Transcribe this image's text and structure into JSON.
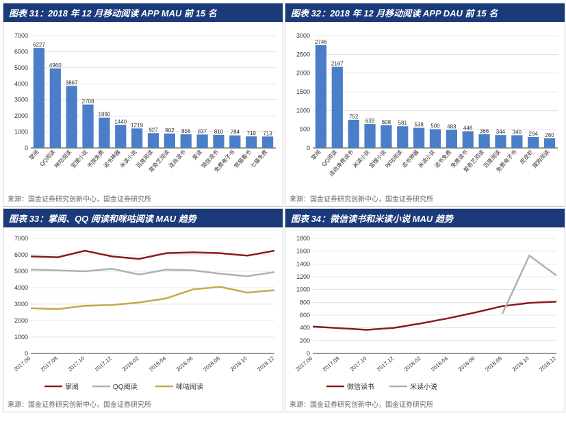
{
  "chart31": {
    "title": "图表 31：2018 年 12 月移动阅读 APP MAU 前 15 名",
    "type": "bar",
    "ylim": [
      0,
      7000
    ],
    "ytick_step": 1000,
    "bar_color": "#4a7ec8",
    "grid_color": "#d0d0d0",
    "categories": [
      "掌阅",
      "QQ阅读",
      "咪咕阅读",
      "宜搜小说",
      "书旗免费",
      "追书神器",
      "米读小说",
      "百度阅读",
      "爱奇艺阅读",
      "连尚读书",
      "爱读",
      "微信读书",
      "免费电子书",
      "熊猫看书",
      "七猫免费"
    ],
    "values": [
      6227,
      4960,
      3867,
      2708,
      1890,
      1440,
      1219,
      927,
      902,
      856,
      837,
      810,
      784,
      719,
      713
    ],
    "source": "来源：国金证券研究创新中心，国金证券研究所"
  },
  "chart32": {
    "title": "图表 32：2018 年 12 月移动阅读 APP DAU 前 15 名",
    "type": "bar",
    "ylim": [
      0,
      3000
    ],
    "ytick_step": 500,
    "bar_color": "#4a7ec8",
    "grid_color": "#d0d0d0",
    "categories": [
      "掌阅",
      "QQ阅读",
      "连尚免费读书",
      "米读小说",
      "宜搜小说",
      "咪咕阅读",
      "追书神器",
      "米读小说",
      "追书免费",
      "免费读书",
      "爱奇艺阅读",
      "百度阅读",
      "免费电子书",
      "皮皮虾",
      "搜狗阅读"
    ],
    "values": [
      2746,
      2167,
      752,
      639,
      608,
      581,
      538,
      500,
      483,
      446,
      366,
      344,
      340,
      294,
      260
    ],
    "source": "来源：国金证券研究创新中心，国金证券研究所"
  },
  "chart33": {
    "title": "图表 33：掌阅、QQ 阅读和咪咕阅读 MAU 趋势",
    "type": "line",
    "ylim": [
      0,
      7000
    ],
    "ytick_step": 1000,
    "grid_color": "#d0d0d0",
    "x_labels": [
      "2017.06",
      "2017.08",
      "2017.10",
      "2017.12",
      "2018.02",
      "2018.04",
      "2018.06",
      "2018.08",
      "2018.10",
      "2018.12"
    ],
    "series": [
      {
        "name": "掌阅",
        "color": "#8b1a1a",
        "width": 2.5,
        "values": [
          5900,
          5850,
          6250,
          5900,
          5750,
          6100,
          6150,
          6100,
          5950,
          6250
        ]
      },
      {
        "name": "QQ阅读",
        "color": "#b0b0b0",
        "width": 2.5,
        "values": [
          5100,
          5050,
          5000,
          5150,
          4800,
          5100,
          5050,
          4850,
          4700,
          4950
        ]
      },
      {
        "name": "咪咕阅读",
        "color": "#c9a84a",
        "width": 2.5,
        "values": [
          2750,
          2700,
          2900,
          2950,
          3100,
          3350,
          3900,
          4050,
          3700,
          3850
        ]
      }
    ],
    "source": "来源：国金证券研究创新中心，国金证券研究所"
  },
  "chart34": {
    "title": "图表 34：微信读书和米读小说 MAU 趋势",
    "type": "line",
    "ylim": [
      0,
      1800
    ],
    "ytick_step": 200,
    "grid_color": "#d0d0d0",
    "x_labels": [
      "2017.06",
      "2017.08",
      "2017.10",
      "2017.12",
      "2018.02",
      "2018.04",
      "2018.06",
      "2018.08",
      "2018.10",
      "2018.12"
    ],
    "series": [
      {
        "name": "微信读书",
        "color": "#8b1a1a",
        "width": 2.5,
        "values": [
          420,
          395,
          370,
          400,
          470,
          550,
          640,
          740,
          790,
          810
        ]
      },
      {
        "name": "米读小说",
        "color": "#b0b0b0",
        "width": 2.5,
        "values": [
          null,
          null,
          null,
          null,
          null,
          null,
          null,
          620,
          1530,
          1220
        ]
      }
    ],
    "source": "来源：国金证券研究创新中心，国金证券研究所"
  }
}
